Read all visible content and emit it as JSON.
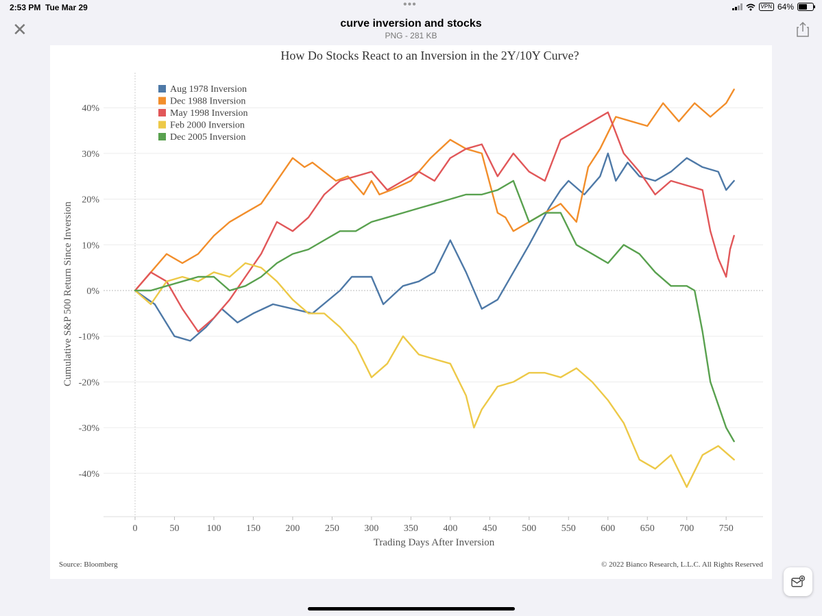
{
  "status_bar": {
    "time": "2:53 PM",
    "date": "Tue Mar 29",
    "vpn": "VPN",
    "battery": "64%"
  },
  "header": {
    "title": "curve inversion and stocks",
    "subtitle": "PNG - 281 KB"
  },
  "icons": {
    "close": "close-icon",
    "share": "share-icon",
    "markup": "markup-icon",
    "wifi": "wifi-icon",
    "battery": "battery-icon",
    "cellular": "cellular-signal-icon"
  },
  "chart_data": {
    "type": "line",
    "title": "How Do Stocks React to an Inversion in the 2Y/10Y Curve?",
    "xlabel": "Trading Days After Inversion",
    "ylabel": "Cumulative S&P 500 Return Since Inversion",
    "xlim": [
      0,
      780
    ],
    "ylim": [
      -50,
      46
    ],
    "x_ticks": [
      0,
      50,
      100,
      150,
      200,
      250,
      300,
      350,
      400,
      450,
      500,
      550,
      600,
      650,
      700,
      750
    ],
    "y_ticks": [
      -40,
      -30,
      -20,
      -10,
      0,
      10,
      20,
      30,
      40
    ],
    "y_tick_labels": [
      "-40%",
      "-30%",
      "-20%",
      "-10%",
      "0%",
      "10%",
      "20%",
      "30%",
      "40%"
    ],
    "grid": true,
    "legend_position": "top-left",
    "source": "Source: Bloomberg",
    "copyright": "© 2022 Bianco Research, L.L.C. All Rights Reserved",
    "series": [
      {
        "name": "Aug 1978 Inversion",
        "color": "#4e79a7",
        "x": [
          0,
          25,
          50,
          70,
          90,
          110,
          130,
          150,
          175,
          200,
          225,
          260,
          275,
          300,
          315,
          340,
          360,
          380,
          400,
          420,
          440,
          460,
          480,
          500,
          525,
          540,
          550,
          570,
          590,
          600,
          610,
          625,
          640,
          660,
          680,
          700,
          720,
          740,
          750,
          760
        ],
        "y": [
          0,
          -3,
          -10,
          -11,
          -8,
          -4,
          -7,
          -5,
          -3,
          -4,
          -5,
          0,
          3,
          3,
          -3,
          1,
          2,
          4,
          11,
          4,
          -4,
          -2,
          4,
          10,
          18,
          22,
          24,
          21,
          25,
          30,
          24,
          28,
          25,
          24,
          26,
          29,
          27,
          26,
          22,
          24
        ]
      },
      {
        "name": "Dec 1988 Inversion",
        "color": "#f28e2b",
        "x": [
          0,
          20,
          40,
          60,
          80,
          100,
          120,
          140,
          160,
          180,
          200,
          215,
          225,
          240,
          255,
          270,
          290,
          300,
          310,
          325,
          350,
          375,
          400,
          420,
          440,
          460,
          470,
          480,
          500,
          520,
          540,
          560,
          575,
          590,
          610,
          630,
          650,
          670,
          690,
          710,
          730,
          750,
          760
        ],
        "y": [
          0,
          4,
          8,
          6,
          8,
          12,
          15,
          17,
          19,
          24,
          29,
          27,
          28,
          26,
          24,
          25,
          21,
          24,
          21,
          22,
          24,
          29,
          33,
          31,
          30,
          17,
          16,
          13,
          15,
          17,
          19,
          15,
          27,
          31,
          38,
          37,
          36,
          41,
          37,
          41,
          38,
          41,
          44
        ]
      },
      {
        "name": "May 1998 Inversion",
        "color": "#e15759",
        "x": [
          0,
          20,
          40,
          60,
          80,
          100,
          120,
          140,
          160,
          180,
          200,
          220,
          240,
          260,
          280,
          300,
          320,
          340,
          360,
          380,
          400,
          420,
          440,
          460,
          480,
          500,
          520,
          540,
          560,
          580,
          600,
          620,
          640,
          660,
          680,
          700,
          720,
          730,
          740,
          750,
          755,
          760
        ],
        "y": [
          0,
          4,
          2,
          -4,
          -9,
          -6,
          -2,
          3,
          8,
          15,
          13,
          16,
          21,
          24,
          25,
          26,
          22,
          24,
          26,
          24,
          29,
          31,
          32,
          25,
          30,
          26,
          24,
          33,
          35,
          37,
          39,
          30,
          26,
          21,
          24,
          23,
          22,
          13,
          7,
          3,
          9,
          12
        ]
      },
      {
        "name": "Feb 2000 Inversion",
        "color": "#edc948",
        "x": [
          0,
          20,
          40,
          60,
          80,
          100,
          120,
          140,
          160,
          180,
          200,
          220,
          240,
          260,
          280,
          300,
          320,
          340,
          360,
          380,
          400,
          420,
          430,
          440,
          460,
          480,
          500,
          520,
          540,
          560,
          580,
          600,
          620,
          640,
          660,
          680,
          700,
          720,
          740,
          760
        ],
        "y": [
          0,
          -3,
          2,
          3,
          2,
          4,
          3,
          6,
          5,
          2,
          -2,
          -5,
          -5,
          -8,
          -12,
          -19,
          -16,
          -10,
          -14,
          -15,
          -16,
          -23,
          -30,
          -26,
          -21,
          -20,
          -18,
          -18,
          -19,
          -17,
          -20,
          -24,
          -29,
          -37,
          -39,
          -36,
          -43,
          -36,
          -34,
          -37
        ]
      },
      {
        "name": "Dec 2005 Inversion",
        "color": "#59a14f",
        "x": [
          0,
          20,
          40,
          60,
          80,
          100,
          120,
          140,
          160,
          180,
          200,
          220,
          240,
          260,
          280,
          300,
          320,
          340,
          360,
          380,
          400,
          420,
          440,
          460,
          480,
          500,
          520,
          540,
          560,
          580,
          600,
          620,
          640,
          660,
          680,
          700,
          710,
          720,
          730,
          740,
          750,
          760
        ],
        "y": [
          0,
          0,
          1,
          2,
          3,
          3,
          0,
          1,
          3,
          6,
          8,
          9,
          11,
          13,
          13,
          15,
          16,
          17,
          18,
          19,
          20,
          21,
          21,
          22,
          24,
          15,
          17,
          17,
          10,
          8,
          6,
          10,
          8,
          4,
          1,
          1,
          0,
          -9,
          -20,
          -25,
          -30,
          -33
        ]
      }
    ]
  }
}
